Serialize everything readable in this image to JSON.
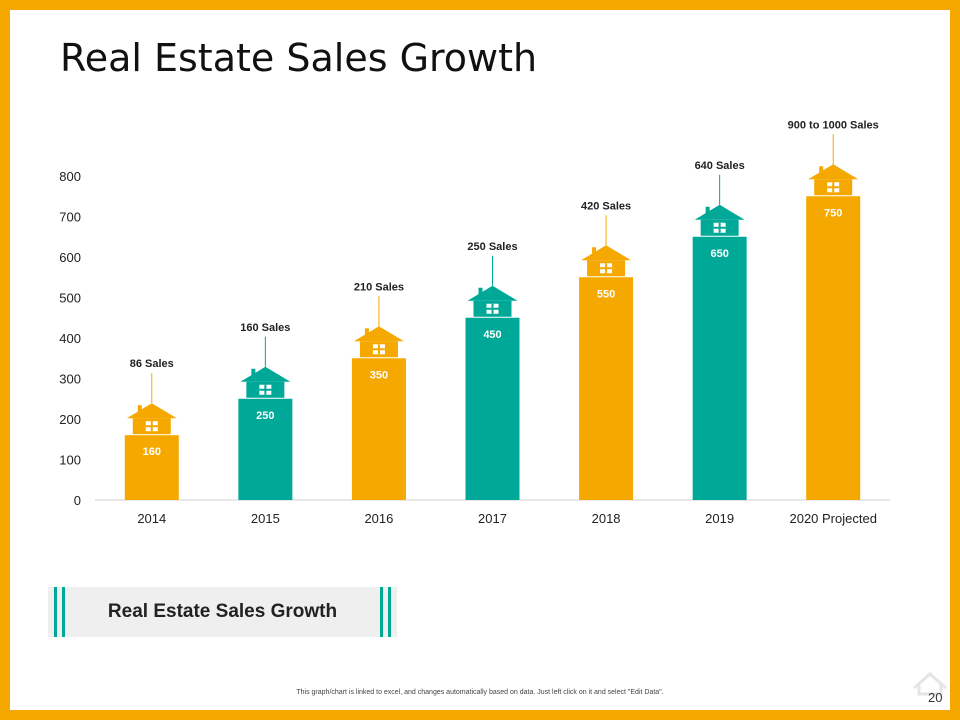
{
  "slide": {
    "title": "Real Estate Sales Growth",
    "caption": "Real Estate Sales Growth",
    "footnote": "This graph/chart is linked to excel, and changes automatically based on data. Just left click on it and select \"Edit Data\".",
    "page_number": "20"
  },
  "colors": {
    "frame": "#F5A800",
    "orange": "#F5A800",
    "teal": "#00A897",
    "axis_text": "#222222"
  },
  "chart_data": {
    "type": "bar",
    "title": "",
    "xlabel": "",
    "ylabel": "",
    "ylim": [
      0,
      800
    ],
    "yticks": [
      0,
      100,
      200,
      300,
      400,
      500,
      600,
      700,
      800
    ],
    "categories": [
      "2014",
      "2015",
      "2016",
      "2017",
      "2018",
      "2019",
      "2020 Projected"
    ],
    "values": [
      160,
      250,
      350,
      450,
      550,
      650,
      750
    ],
    "data_labels": [
      "160",
      "250",
      "350",
      "450",
      "550",
      "650",
      "750"
    ],
    "annotations": [
      "86 Sales",
      "160 Sales",
      "210 Sales",
      "250 Sales",
      "420 Sales",
      "640 Sales",
      "900 to 1000 Sales"
    ],
    "bar_colors": [
      "orange",
      "teal",
      "orange",
      "teal",
      "orange",
      "teal",
      "orange"
    ],
    "grid": false
  }
}
